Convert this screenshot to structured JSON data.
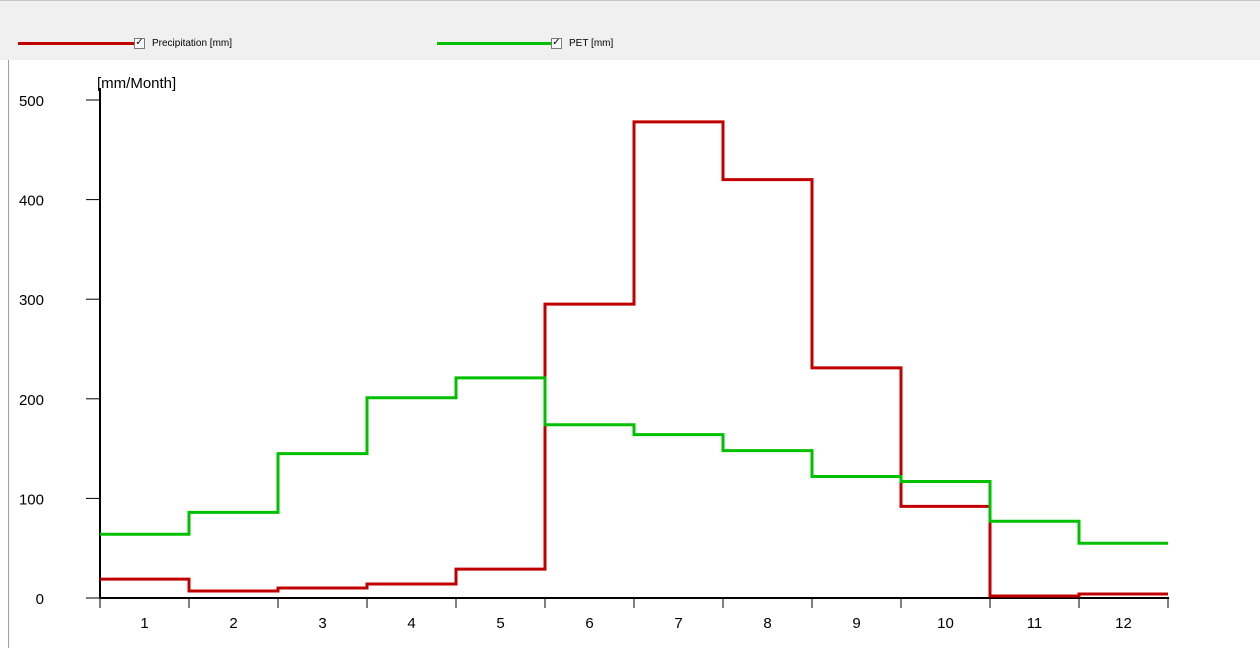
{
  "legend": {
    "items": [
      {
        "label": "Precipitation [mm]",
        "color": "#c00000",
        "checked": true,
        "check_glyph": "✓"
      },
      {
        "label": "PET [mm]",
        "color": "#00c000",
        "checked": true,
        "check_glyph": "✓"
      }
    ]
  },
  "chart_data": {
    "type": "line",
    "step": true,
    "ylabel": "[mm/Month]",
    "xlabel": "",
    "ylim": [
      0,
      500
    ],
    "yticks": [
      0,
      100,
      200,
      300,
      400,
      500
    ],
    "ytick_labels": [
      "0",
      "100",
      "200",
      "300",
      "400",
      "500"
    ],
    "categories": [
      "1",
      "2",
      "3",
      "4",
      "5",
      "6",
      "7",
      "8",
      "9",
      "10",
      "11",
      "12"
    ],
    "grid": false,
    "series": [
      {
        "name": "Precipitation [mm]",
        "color": "#c00000",
        "values": [
          19,
          7,
          10,
          14,
          29,
          295,
          478,
          420,
          231,
          92,
          2,
          4
        ]
      },
      {
        "name": "PET [mm]",
        "color": "#00c000",
        "values": [
          64,
          86,
          145,
          201,
          221,
          174,
          164,
          148,
          122,
          117,
          77,
          55
        ]
      }
    ]
  }
}
